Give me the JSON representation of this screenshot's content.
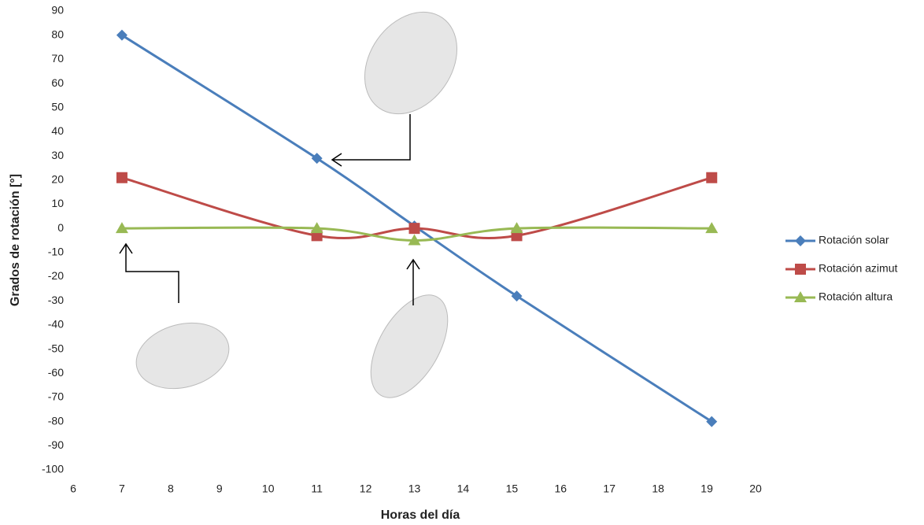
{
  "chart_data": {
    "type": "line",
    "x_label": "Horas del día",
    "y_label": "Grados de rotación [°]",
    "xlim": [
      6,
      20
    ],
    "xticks": [
      6,
      7,
      8,
      9,
      10,
      11,
      12,
      13,
      14,
      15,
      16,
      17,
      18,
      19,
      20
    ],
    "ylim": [
      -100,
      90
    ],
    "yticks": [
      -100,
      -90,
      -80,
      -70,
      -60,
      -50,
      -40,
      -30,
      -20,
      -10,
      0,
      10,
      20,
      30,
      40,
      50,
      60,
      70,
      80,
      90
    ],
    "smooth": true,
    "legend": "right",
    "series": [
      {
        "name": "Rotación solar",
        "color": "#4a7ebb",
        "marker": "diamond",
        "x": [
          7,
          11,
          13,
          15.1,
          19.1
        ],
        "values": [
          80,
          29,
          1,
          -28,
          -80
        ]
      },
      {
        "name": "Rotación azimut",
        "color": "#be4b48",
        "marker": "square",
        "x": [
          7,
          11,
          13,
          15.1,
          19.1
        ],
        "values": [
          21,
          -3,
          0,
          -3,
          21
        ]
      },
      {
        "name": "Rotación altura",
        "color": "#98b954",
        "marker": "triangle",
        "x": [
          7,
          11,
          13,
          15.1,
          19.1
        ],
        "values": [
          0,
          0,
          -5,
          0,
          0
        ]
      }
    ]
  }
}
